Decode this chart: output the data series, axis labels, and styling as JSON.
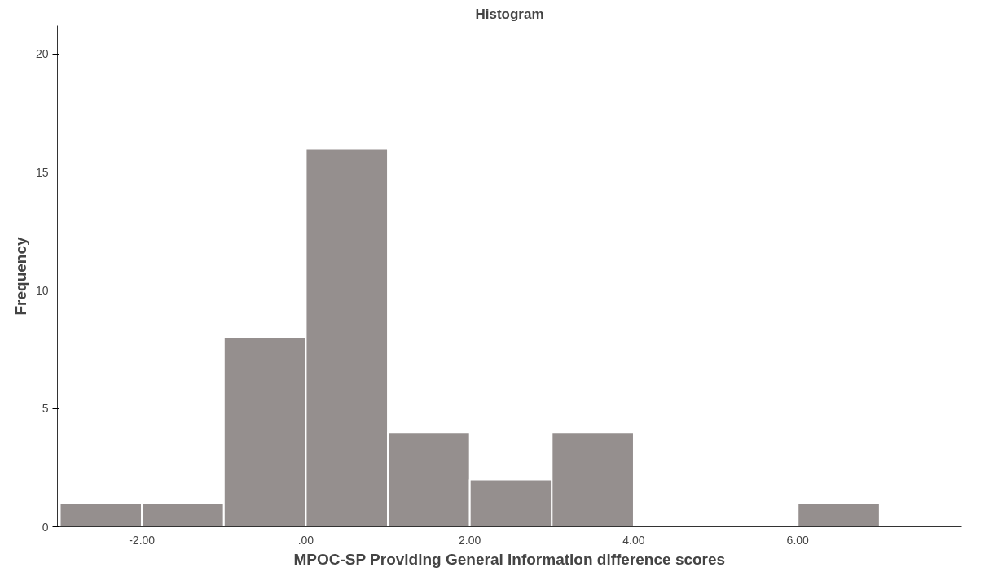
{
  "chart_data": {
    "type": "histogram",
    "title": "Histogram",
    "xlabel": "MPOC-SP Providing General Information difference scores",
    "ylabel": "Frequency",
    "bins": [
      -3,
      -2,
      -1,
      0,
      1,
      2,
      3,
      4,
      5,
      6,
      7
    ],
    "values": [
      1,
      1,
      8,
      16,
      4,
      2,
      4,
      0,
      0,
      1
    ],
    "color": "#958f8e",
    "xlim": [
      -3.03,
      8.0
    ],
    "ylim": [
      0,
      21.2
    ],
    "xticks": [
      {
        "value": -2,
        "label": "-2.00"
      },
      {
        "value": 0,
        "label": ".00"
      },
      {
        "value": 2,
        "label": "2.00"
      },
      {
        "value": 4,
        "label": "4.00"
      },
      {
        "value": 6,
        "label": "6.00"
      }
    ],
    "yticks": [
      0,
      5,
      10,
      15,
      20
    ],
    "grid": false
  }
}
